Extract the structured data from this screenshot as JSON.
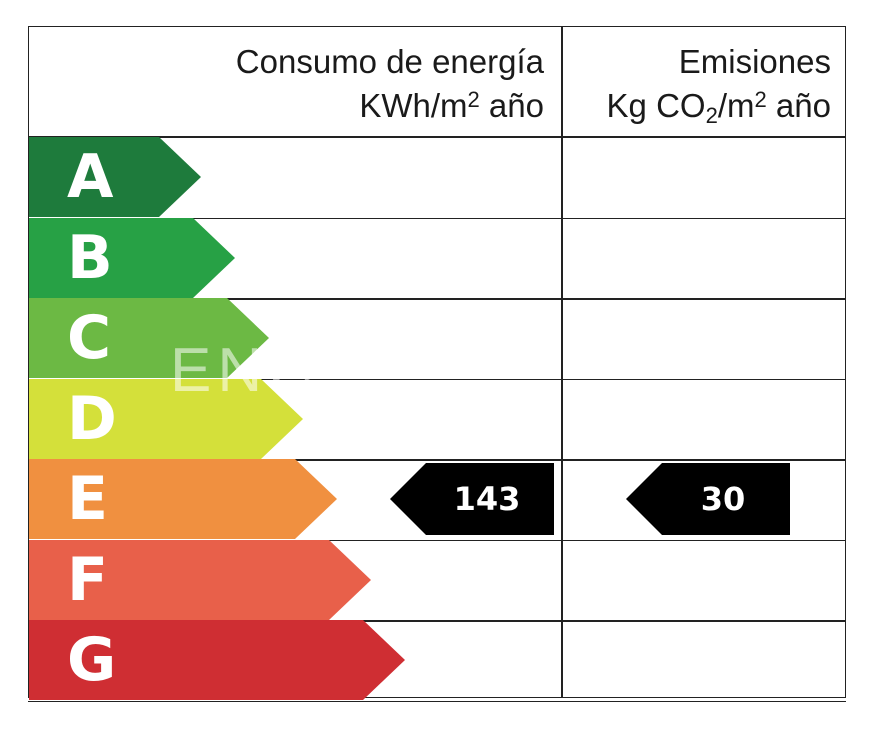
{
  "header": {
    "energy": {
      "line1": "Consumo de energía",
      "unit_pre": "KWh/m",
      "unit_sup": "2",
      "unit_post": " año"
    },
    "emissions": {
      "line1": "Emisiones",
      "unit_pre": "Kg CO",
      "unit_sub": "2",
      "unit_mid": "/m",
      "unit_sup": "2",
      "unit_post": " año"
    }
  },
  "bands": [
    {
      "letter": "A",
      "color": "#1e7b3c"
    },
    {
      "letter": "B",
      "color": "#27a145"
    },
    {
      "letter": "C",
      "color": "#6cb944"
    },
    {
      "letter": "D",
      "color": "#d4e03a"
    },
    {
      "letter": "E",
      "color": "#f09040"
    },
    {
      "letter": "F",
      "color": "#e8604a"
    },
    {
      "letter": "G",
      "color": "#cf2e33"
    }
  ],
  "rating": {
    "class": "E",
    "energy_value": "143",
    "emissions_value": "30"
  },
  "watermark": "ENC"
}
